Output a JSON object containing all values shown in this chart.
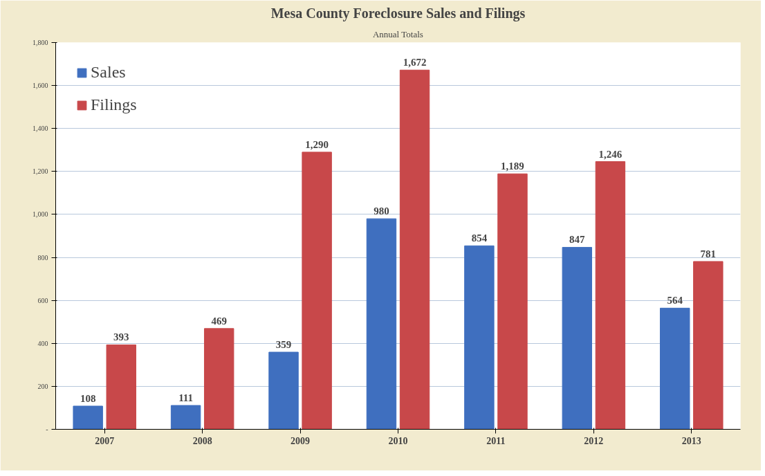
{
  "chart_data": {
    "type": "bar",
    "title": "Mesa County Foreclosure Sales and Filings",
    "subtitle": "Annual Totals",
    "categories": [
      "2007",
      "2008",
      "2009",
      "2010",
      "2011",
      "2012",
      "2013"
    ],
    "series": [
      {
        "name": "Sales",
        "color": "#3f6fbf",
        "values": [
          108,
          111,
          359,
          980,
          854,
          847,
          564
        ],
        "value_labels": [
          "108",
          "111",
          "359",
          "980",
          "854",
          "847",
          "564"
        ]
      },
      {
        "name": "Filings",
        "color": "#c8484a",
        "values": [
          393,
          469,
          1290,
          1672,
          1189,
          1246,
          781
        ],
        "value_labels": [
          "393",
          "469",
          "1,290",
          "1,672",
          "1,189",
          "1,246",
          "781"
        ]
      }
    ],
    "ylim": [
      0,
      1800
    ],
    "yticks": [
      {
        "value": 0,
        "label": "-"
      },
      200,
      400,
      600,
      800,
      {
        "value": 1000,
        "label": "1,000"
      },
      {
        "value": 1200,
        "label": "1,200"
      },
      {
        "value": 1400,
        "label": "1,400"
      },
      {
        "value": 1600,
        "label": "1,600"
      },
      {
        "value": 1800,
        "label": "1,800"
      }
    ],
    "grid": "y",
    "legend": "top left"
  }
}
